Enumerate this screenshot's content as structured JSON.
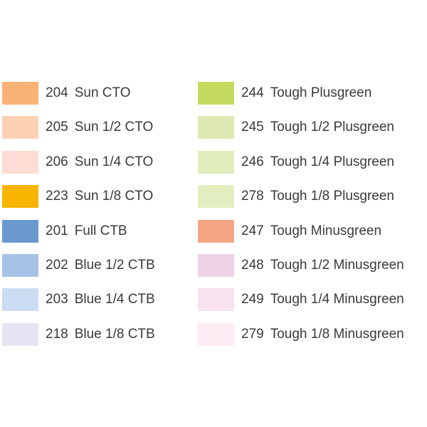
{
  "left": [
    {
      "code": "204",
      "name": "Sun CTO",
      "color": "#f9b275"
    },
    {
      "code": "205",
      "name": "Sun 1/2 CTO",
      "color": "#fdd2b4"
    },
    {
      "code": "206",
      "name": "Sun 1/4 CTO",
      "color": "#fcdcd4"
    },
    {
      "code": "223",
      "name": "Sun 1/8 CTO",
      "color": "#f7b500"
    },
    {
      "code": "201",
      "name": "Full CTB",
      "color": "#6a99d0"
    },
    {
      "code": "202",
      "name": "Blue 1/2 CTB",
      "color": "#a6c3e7"
    },
    {
      "code": "203",
      "name": "Blue 1/4 CTB",
      "color": "#cbdbf1"
    },
    {
      "code": "218",
      "name": "Blue 1/8 CTB",
      "color": "#e6e4f2"
    }
  ],
  "right": [
    {
      "code": "244",
      "name": "Tough Plusgreen",
      "color": "#c3da5e"
    },
    {
      "code": "245",
      "name": "Tough 1/2 Plusgreen",
      "color": "#dde9b0"
    },
    {
      "code": "246",
      "name": "Tough 1/4 Plusgreen",
      "color": "#e2edbd"
    },
    {
      "code": "278",
      "name": "Tough 1/8 Plusgreen",
      "color": "#e3eec0"
    },
    {
      "code": "247",
      "name": "Tough Minusgreen",
      "color": "#f4a682"
    },
    {
      "code": "248",
      "name": "Tough 1/2 Minusgreen",
      "color": "#efd2e6"
    },
    {
      "code": "249",
      "name": "Tough 1/4 Minusgreen",
      "color": "#f8e2ef"
    },
    {
      "code": "279",
      "name": "Tough 1/8 Minusgreen",
      "color": "#fcedf4"
    }
  ]
}
